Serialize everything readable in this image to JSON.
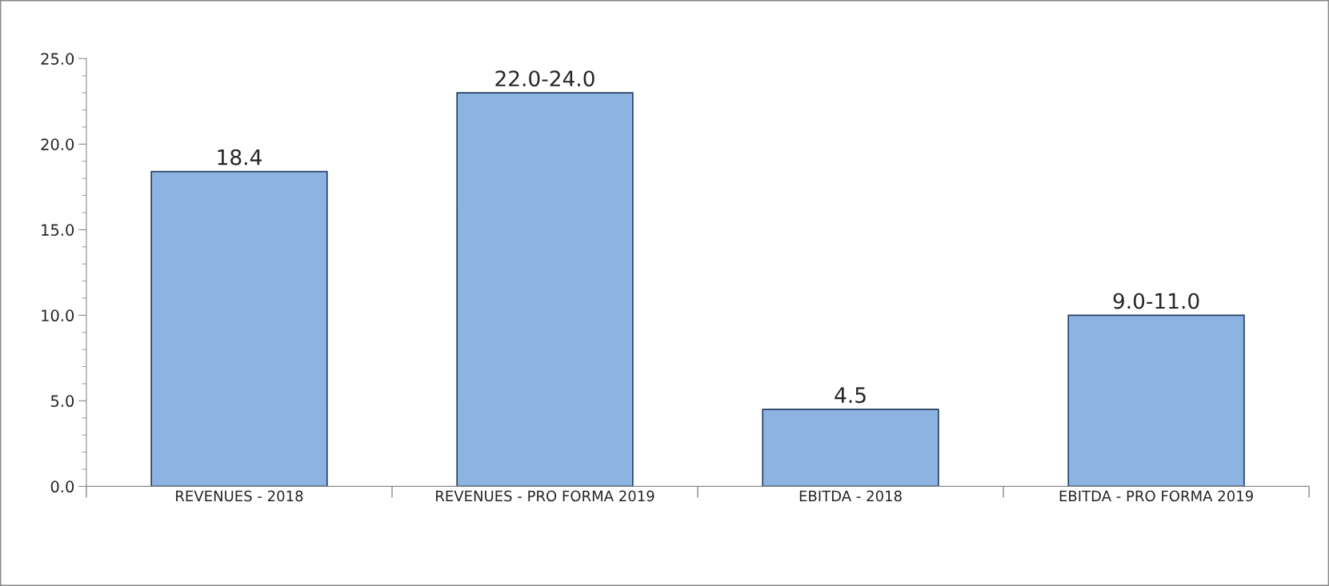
{
  "chart_data": {
    "type": "bar",
    "categories": [
      "REVENUES - 2018",
      "REVENUES - PRO FORMA 2019",
      "EBITDA - 2018",
      "EBITDA - PRO FORMA 2019"
    ],
    "series": [
      {
        "color": "#8db3e2",
        "values": [
          18.4,
          23.0,
          4.5,
          10.0
        ],
        "value_labels": [
          "18.4",
          "22.0-24.0",
          "4.5",
          "9.0-11.0"
        ]
      }
    ],
    "ylim": [
      0,
      25
    ],
    "yticks": [
      {
        "value": 0,
        "label": "0.0"
      },
      {
        "value": 5,
        "label": "5.0"
      },
      {
        "value": 10,
        "label": "10.0"
      },
      {
        "value": 15,
        "label": "15.0"
      },
      {
        "value": 20,
        "label": "20.0"
      },
      {
        "value": 25,
        "label": "25.0"
      }
    ],
    "grid": false
  }
}
